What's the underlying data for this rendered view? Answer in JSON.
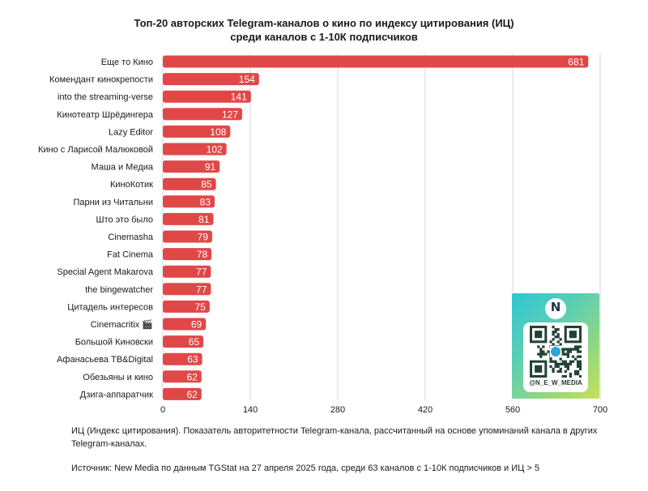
{
  "chart_data": {
    "type": "bar",
    "orientation": "horizontal",
    "title": "Топ-20 авторских Telegram-каналов о кино по индексу цитирования (ИЦ) среди каналов с 1-10К подписчиков",
    "title_lines": [
      "Топ-20 авторских Telegram-каналов о кино по индексу цитирования (ИЦ)",
      "среди каналов с 1-10К подписчиков"
    ],
    "categories": [
      "Еще то Кино",
      "Комендант кинокрепости",
      "into the streaming-verse",
      "Кинотеатр Шрёдингера",
      "Lazy Editor",
      "Кино с Ларисой Малюковой",
      "Маша и Медиа",
      "КиноКотик",
      "Парни из Читальни",
      "Што это было",
      "Cinemasha",
      "Fat Cinema",
      "Special Agent Makarova",
      "the bingewatcher",
      "Цитадель интересов",
      "Cinemacritix 🎬",
      "Большой Киновски",
      "Афанасьева ТВ&Digital",
      "Обезьяны и кино",
      "Дзига-аппаратчик"
    ],
    "values": [
      681,
      154,
      141,
      127,
      108,
      102,
      91,
      85,
      83,
      81,
      79,
      78,
      77,
      77,
      75,
      69,
      65,
      63,
      62,
      62
    ],
    "xlim": [
      0,
      700
    ],
    "xticks": [
      0,
      140,
      280,
      420,
      560,
      700
    ],
    "xlabel": "",
    "ylabel": "",
    "grid": "vertical",
    "bar_color": "#e04848",
    "grid_color": "#d6d6d6",
    "data_labels": true
  },
  "note": "ИЦ (Индекс цитирования). Показатель авторитетности Telegram-канала, рассчитанный на основе упоминаний канала в других Telegram-каналах.",
  "source": "Источник: New Media по данным TGStat на 27 апреля 2025 года, среди 63 каналов с 1-10К подписчиков и ИЦ > 5",
  "qr_card": {
    "logo_letter": "N",
    "handle": "@N_E_W_MEDIA",
    "gradient_colors": [
      "#2ec4d6",
      "#9ad87a",
      "#c6e15a"
    ]
  }
}
